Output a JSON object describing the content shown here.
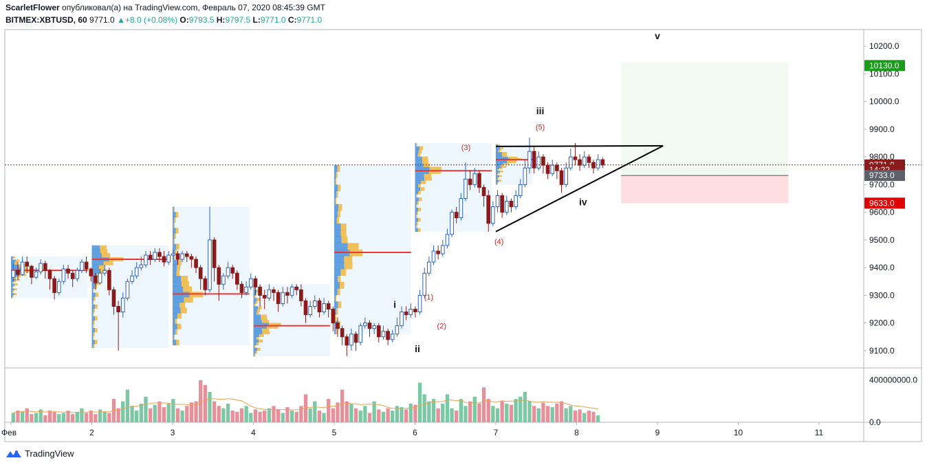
{
  "header": {
    "author": "ScarletFlower",
    "published_text": "опубликовал(а) на TradingView.com, Февраль 07, 2020 08:45:39 GMT",
    "symbol": "BITMEX:XBTUSD, 60",
    "last": "9771.0",
    "change": "+8.0 (+0.08%)",
    "o_label": "O:",
    "o_value": "9793.5",
    "h_label": "H:",
    "h_value": "9797.5",
    "l_label": "L:",
    "l_value": "9771.0",
    "c_label": "C:",
    "c_value": "9771.0"
  },
  "brand": {
    "label": "TradingView"
  },
  "colors": {
    "up": "#26a69a",
    "down": "#8b1a1a",
    "poc": "#e53935",
    "profile_up": "#4a90d9",
    "profile_down": "#f0b73d"
  },
  "chart_data": {
    "type": "candlestick",
    "x_axis": {
      "ticks": [
        "Фев",
        "2",
        "3",
        "4",
        "5",
        "6",
        "7",
        "8",
        "9",
        "10",
        "11"
      ]
    },
    "y_axis": {
      "range": [
        9040,
        10260
      ],
      "ticks": [
        "10200.0",
        "10100.0",
        "10000.0",
        "9900.0",
        "9800.0",
        "9700.0",
        "9600.0",
        "9500.0",
        "9400.0",
        "9300.0",
        "9200.0",
        "9100.0"
      ]
    },
    "volume_axis": {
      "range": [
        0,
        500000000
      ],
      "ticks": [
        "400000000.0",
        "0.0"
      ]
    },
    "price_labels": [
      {
        "text": "10130.0",
        "value": 10130,
        "color": "#1a9c1a"
      },
      {
        "text": "9771.0",
        "value": 9771,
        "color": "#8b1a1a"
      },
      {
        "text": "14:22",
        "value": 9753,
        "color": "#8b1a1a"
      },
      {
        "text": "9733.0",
        "value": 9733,
        "color": "#5d606b"
      },
      {
        "text": "9633.0",
        "value": 9633,
        "color": "#e00000"
      }
    ],
    "current_price": 9771,
    "wave_labels": [
      {
        "text": "i",
        "x": 4.75,
        "y": 9255,
        "color": "#131722"
      },
      {
        "text": "ii",
        "x": 5.03,
        "y": 9095,
        "color": "#131722"
      },
      {
        "text": "iii",
        "x": 6.55,
        "y": 9955,
        "color": "#131722"
      },
      {
        "text": "iv",
        "x": 7.08,
        "y": 9625,
        "color": "#131722"
      },
      {
        "text": "v",
        "x": 8.0,
        "y": 10225,
        "color": "#131722"
      },
      {
        "text": "(1)",
        "x": 5.17,
        "y": 9285,
        "color": "#c62828"
      },
      {
        "text": "(2)",
        "x": 5.33,
        "y": 9180,
        "color": "#c62828"
      },
      {
        "text": "(3)",
        "x": 5.63,
        "y": 9825,
        "color": "#c62828"
      },
      {
        "text": "(4)",
        "x": 6.04,
        "y": 9485,
        "color": "#c62828"
      },
      {
        "text": "(5)",
        "x": 6.55,
        "y": 9898,
        "color": "#c62828"
      }
    ],
    "triangle": {
      "apex": [
        8.07,
        9840
      ],
      "top_start": [
        6.0,
        9838
      ],
      "bottom_start": [
        6.0,
        9530
      ]
    },
    "target_box": {
      "x0": 7.55,
      "x1": 9.62,
      "top": 10140,
      "entry": 9733,
      "stop": 9633
    },
    "profiles": [
      {
        "x0": 0.0,
        "x1": 0.95,
        "lo": 9290,
        "hi": 9440,
        "poc": 9390
      },
      {
        "x0": 1.0,
        "x1": 1.95,
        "lo": 9110,
        "hi": 9480,
        "poc": 9430
      },
      {
        "x0": 2.0,
        "x1": 2.95,
        "lo": 9120,
        "hi": 9620,
        "poc": 9305
      },
      {
        "x0": 3.0,
        "x1": 3.95,
        "lo": 9080,
        "hi": 9340,
        "poc": 9190
      },
      {
        "x0": 4.0,
        "x1": 4.95,
        "lo": 9160,
        "hi": 9770,
        "poc": 9455
      },
      {
        "x0": 5.0,
        "x1": 5.95,
        "lo": 9530,
        "hi": 9850,
        "poc": 9750
      },
      {
        "x0": 6.0,
        "x1": 6.45,
        "lo": 9700,
        "hi": 9845,
        "poc": 9790
      }
    ],
    "candles": [
      [
        9365,
        9390,
        9350,
        9415
      ],
      [
        9390,
        9375,
        9355,
        9420
      ],
      [
        9375,
        9420,
        9370,
        9440
      ],
      [
        9420,
        9405,
        9380,
        9440
      ],
      [
        9405,
        9365,
        9340,
        9410
      ],
      [
        9365,
        9385,
        9360,
        9400
      ],
      [
        9385,
        9415,
        9375,
        9430
      ],
      [
        9415,
        9390,
        9360,
        9425
      ],
      [
        9390,
        9360,
        9320,
        9395
      ],
      [
        9360,
        9310,
        9285,
        9370
      ],
      [
        9310,
        9350,
        9300,
        9360
      ],
      [
        9350,
        9395,
        9340,
        9410
      ],
      [
        9395,
        9380,
        9360,
        9410
      ],
      [
        9380,
        9360,
        9330,
        9390
      ],
      [
        9360,
        9390,
        9350,
        9400
      ],
      [
        9390,
        9420,
        9380,
        9430
      ],
      [
        9420,
        9395,
        9380,
        9440
      ],
      [
        9395,
        9370,
        9350,
        9400
      ],
      [
        9370,
        9345,
        9320,
        9380
      ],
      [
        9345,
        9380,
        9340,
        9395
      ],
      [
        9380,
        9390,
        9370,
        9410
      ],
      [
        9390,
        9320,
        9300,
        9400
      ],
      [
        9320,
        9260,
        9230,
        9330
      ],
      [
        9260,
        9240,
        9100,
        9280
      ],
      [
        9240,
        9290,
        9220,
        9310
      ],
      [
        9290,
        9350,
        9280,
        9360
      ],
      [
        9350,
        9370,
        9340,
        9390
      ],
      [
        9370,
        9400,
        9360,
        9420
      ],
      [
        9400,
        9410,
        9390,
        9440
      ],
      [
        9410,
        9445,
        9400,
        9460
      ],
      [
        9445,
        9430,
        9410,
        9460
      ],
      [
        9430,
        9455,
        9420,
        9470
      ],
      [
        9455,
        9440,
        9420,
        9470
      ],
      [
        9440,
        9420,
        9405,
        9460
      ],
      [
        9420,
        9445,
        9410,
        9460
      ],
      [
        9445,
        9450,
        9430,
        9465
      ],
      [
        9450,
        9430,
        9410,
        9460
      ],
      [
        9430,
        9450,
        9420,
        9460
      ],
      [
        9450,
        9440,
        9420,
        9460
      ],
      [
        9440,
        9430,
        9400,
        9450
      ],
      [
        9430,
        9400,
        9380,
        9440
      ],
      [
        9400,
        9360,
        9320,
        9410
      ],
      [
        9360,
        9320,
        9300,
        9370
      ],
      [
        9320,
        9500,
        9310,
        9620
      ],
      [
        9500,
        9400,
        9350,
        9510
      ],
      [
        9400,
        9340,
        9280,
        9410
      ],
      [
        9340,
        9370,
        9320,
        9380
      ],
      [
        9370,
        9400,
        9360,
        9420
      ],
      [
        9400,
        9380,
        9360,
        9410
      ],
      [
        9380,
        9340,
        9320,
        9390
      ],
      [
        9340,
        9310,
        9290,
        9350
      ],
      [
        9310,
        9330,
        9300,
        9350
      ],
      [
        9330,
        9360,
        9320,
        9380
      ],
      [
        9360,
        9330,
        9300,
        9370
      ],
      [
        9330,
        9300,
        9260,
        9340
      ],
      [
        9300,
        9290,
        9250,
        9320
      ],
      [
        9290,
        9320,
        9280,
        9340
      ],
      [
        9320,
        9310,
        9280,
        9330
      ],
      [
        9310,
        9270,
        9240,
        9320
      ],
      [
        9270,
        9310,
        9260,
        9330
      ],
      [
        9310,
        9300,
        9270,
        9330
      ],
      [
        9300,
        9330,
        9290,
        9340
      ],
      [
        9330,
        9320,
        9300,
        9340
      ],
      [
        9320,
        9280,
        9260,
        9340
      ],
      [
        9280,
        9230,
        9200,
        9290
      ],
      [
        9230,
        9260,
        9220,
        9280
      ],
      [
        9260,
        9280,
        9250,
        9300
      ],
      [
        9280,
        9240,
        9220,
        9290
      ],
      [
        9240,
        9270,
        9230,
        9290
      ],
      [
        9270,
        9250,
        9220,
        9280
      ],
      [
        9250,
        9200,
        9170,
        9260
      ],
      [
        9200,
        9180,
        9150,
        9220
      ],
      [
        9180,
        9150,
        9120,
        9190
      ],
      [
        9150,
        9120,
        9080,
        9160
      ],
      [
        9120,
        9160,
        9100,
        9180
      ],
      [
        9160,
        9130,
        9100,
        9170
      ],
      [
        9130,
        9190,
        9120,
        9200
      ],
      [
        9190,
        9200,
        9180,
        9220
      ],
      [
        9200,
        9180,
        9150,
        9210
      ],
      [
        9180,
        9190,
        9160,
        9200
      ],
      [
        9190,
        9150,
        9130,
        9200
      ],
      [
        9150,
        9170,
        9140,
        9190
      ],
      [
        9170,
        9140,
        9120,
        9180
      ],
      [
        9140,
        9160,
        9130,
        9175
      ],
      [
        9160,
        9190,
        9150,
        9220
      ],
      [
        9190,
        9240,
        9180,
        9260
      ],
      [
        9240,
        9230,
        9210,
        9260
      ],
      [
        9230,
        9250,
        9220,
        9270
      ],
      [
        9250,
        9240,
        9220,
        9260
      ],
      [
        9240,
        9300,
        9230,
        9320
      ],
      [
        9300,
        9380,
        9290,
        9400
      ],
      [
        9380,
        9420,
        9370,
        9440
      ],
      [
        9420,
        9460,
        9410,
        9480
      ],
      [
        9460,
        9450,
        9430,
        9480
      ],
      [
        9450,
        9480,
        9440,
        9500
      ],
      [
        9480,
        9520,
        9470,
        9540
      ],
      [
        9520,
        9600,
        9510,
        9610
      ],
      [
        9600,
        9580,
        9560,
        9620
      ],
      [
        9580,
        9650,
        9570,
        9670
      ],
      [
        9650,
        9720,
        9640,
        9780
      ],
      [
        9720,
        9700,
        9680,
        9750
      ],
      [
        9700,
        9740,
        9690,
        9760
      ],
      [
        9740,
        9690,
        9670,
        9750
      ],
      [
        9690,
        9660,
        9620,
        9700
      ],
      [
        9660,
        9560,
        9530,
        9680
      ],
      [
        9560,
        9620,
        9550,
        9640
      ],
      [
        9620,
        9660,
        9600,
        9680
      ],
      [
        9660,
        9600,
        9580,
        9670
      ],
      [
        9600,
        9640,
        9590,
        9660
      ],
      [
        9640,
        9620,
        9600,
        9650
      ],
      [
        9620,
        9660,
        9610,
        9680
      ],
      [
        9660,
        9700,
        9650,
        9720
      ],
      [
        9700,
        9760,
        9690,
        9790
      ],
      [
        9760,
        9820,
        9740,
        9870
      ],
      [
        9820,
        9760,
        9740,
        9840
      ],
      [
        9760,
        9800,
        9750,
        9820
      ],
      [
        9800,
        9770,
        9740,
        9810
      ],
      [
        9770,
        9740,
        9720,
        9780
      ],
      [
        9740,
        9770,
        9730,
        9790
      ],
      [
        9770,
        9750,
        9720,
        9780
      ],
      [
        9750,
        9700,
        9670,
        9760
      ],
      [
        9700,
        9760,
        9690,
        9780
      ],
      [
        9760,
        9800,
        9750,
        9830
      ],
      [
        9800,
        9790,
        9770,
        9850
      ],
      [
        9790,
        9770,
        9750,
        9810
      ],
      [
        9770,
        9800,
        9760,
        9820
      ],
      [
        9800,
        9780,
        9760,
        9810
      ],
      [
        9780,
        9760,
        9740,
        9790
      ],
      [
        9760,
        9790,
        9750,
        9810
      ],
      [
        9790,
        9771,
        9760,
        9798
      ]
    ],
    "volume": [
      40,
      50,
      45,
      60,
      35,
      40,
      55,
      30,
      50,
      45,
      35,
      40,
      50,
      35,
      45,
      60,
      40,
      50,
      35,
      55,
      45,
      40,
      100,
      60,
      90,
      140,
      70,
      50,
      80,
      110,
      60,
      75,
      90,
      65,
      80,
      100,
      60,
      50,
      70,
      85,
      90,
      180,
      160,
      130,
      90,
      70,
      60,
      80,
      50,
      45,
      60,
      70,
      40,
      55,
      45,
      50,
      60,
      70,
      55,
      40,
      65,
      50,
      45,
      70,
      120,
      60,
      90,
      50,
      40,
      100,
      60,
      85,
      140,
      90,
      80,
      60,
      50,
      70,
      40,
      90,
      55,
      45,
      60,
      50,
      70,
      65,
      55,
      80,
      75,
      170,
      120,
      90,
      100,
      60,
      80,
      120,
      60,
      50,
      100,
      70,
      90,
      110,
      80,
      150,
      100,
      70,
      60,
      90,
      80,
      75,
      100,
      110,
      130,
      90,
      70,
      60,
      85,
      70,
      65,
      80,
      90,
      60,
      70,
      50,
      55,
      40,
      50,
      45,
      30
    ]
  }
}
